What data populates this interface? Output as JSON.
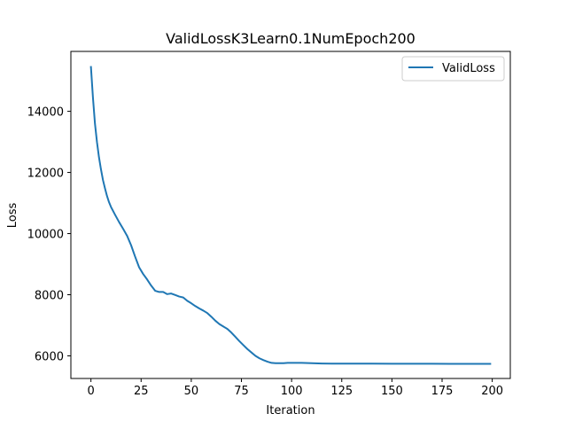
{
  "chart_data": {
    "type": "line",
    "title": "ValidLossK3Learn0.1NumEpoch200",
    "xlabel": "Iteration",
    "ylabel": "Loss",
    "xlim": [
      -10,
      209
    ],
    "ylim": [
      5260,
      15960
    ],
    "xticks": [
      0,
      25,
      50,
      75,
      100,
      125,
      150,
      175,
      200
    ],
    "yticks": [
      6000,
      8000,
      10000,
      12000,
      14000
    ],
    "xtick_labels": [
      "0",
      "25",
      "50",
      "75",
      "100",
      "125",
      "150",
      "175",
      "200"
    ],
    "ytick_labels": [
      "6000",
      "8000",
      "10000",
      "12000",
      "14000"
    ],
    "grid": false,
    "legend_position": "upper right",
    "series": [
      {
        "name": "ValidLoss",
        "color": "#1f77b4",
        "x": [
          0,
          1,
          2,
          3,
          4,
          5,
          6,
          7,
          8,
          9,
          10,
          12,
          14,
          16,
          18,
          20,
          22,
          24,
          26,
          28,
          30,
          32,
          34,
          36,
          38,
          40,
          42,
          44,
          46,
          48,
          50,
          52,
          54,
          56,
          58,
          60,
          62,
          64,
          66,
          68,
          70,
          72,
          74,
          76,
          78,
          80,
          82,
          84,
          86,
          88,
          90,
          92,
          94,
          96,
          98,
          100,
          105,
          110,
          115,
          120,
          130,
          140,
          150,
          160,
          170,
          180,
          190,
          199
        ],
        "y": [
          15450,
          14450,
          13600,
          13000,
          12500,
          12100,
          11750,
          11480,
          11230,
          11030,
          10870,
          10620,
          10380,
          10160,
          9930,
          9620,
          9250,
          8900,
          8680,
          8500,
          8300,
          8130,
          8090,
          8090,
          8020,
          8040,
          7990,
          7940,
          7910,
          7800,
          7720,
          7630,
          7550,
          7480,
          7400,
          7280,
          7150,
          7040,
          6960,
          6880,
          6760,
          6620,
          6480,
          6350,
          6220,
          6110,
          6000,
          5920,
          5860,
          5810,
          5770,
          5760,
          5760,
          5760,
          5770,
          5770,
          5770,
          5760,
          5750,
          5745,
          5745,
          5745,
          5742,
          5742,
          5742,
          5740,
          5740,
          5738
        ]
      }
    ]
  }
}
